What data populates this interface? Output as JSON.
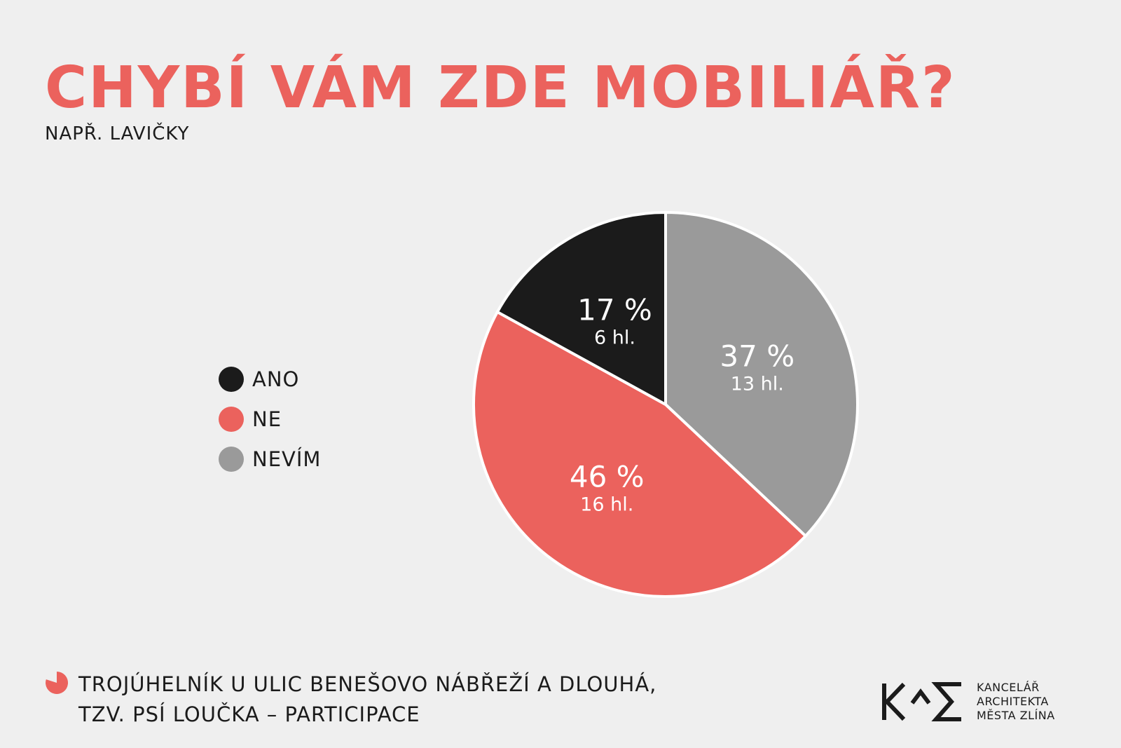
{
  "title": "CHYBÍ VÁM ZDE MOBILIÁŘ?",
  "subtitle": "NAPŘ. LAVIČKY",
  "chart_data": {
    "type": "pie",
    "slices": [
      {
        "name": "NEVÍM",
        "percent": 37,
        "percent_label": "37 %",
        "votes": 13,
        "votes_label": "13 hl.",
        "color": "#9a9a9a"
      },
      {
        "name": "NE",
        "percent": 46,
        "percent_label": "46 %",
        "votes": 16,
        "votes_label": "16 hl.",
        "color": "#eb625d"
      },
      {
        "name": "ANO",
        "percent": 17,
        "percent_label": "17 %",
        "votes": 6,
        "votes_label": "6 hl.",
        "color": "#1b1b1b"
      }
    ],
    "legend": [
      {
        "label": "ANO",
        "color": "#1b1b1b"
      },
      {
        "label": "NE",
        "color": "#eb625d"
      },
      {
        "label": "NEVÍM",
        "color": "#9a9a9a"
      }
    ],
    "legend_placement": "left"
  },
  "footer": {
    "line1": "TROJÚHELNÍK U ULIC BENEŠOVO NÁBŘEŽÍ A DLOUHÁ,",
    "line2": "TZV. PSÍ LOUČKA – PARTICIPACE",
    "icon": "pie-icon",
    "icon_color": "#eb625d"
  },
  "logo": {
    "mark_icon": "kam-logo-icon",
    "line1": "KANCELÁŘ",
    "line2": "ARCHITEKTA",
    "line3": "MĚSTA ZLÍNA"
  },
  "colors": {
    "background": "#efefef",
    "accent": "#eb625d",
    "dark": "#1b1b1b",
    "gray": "#9a9a9a"
  }
}
